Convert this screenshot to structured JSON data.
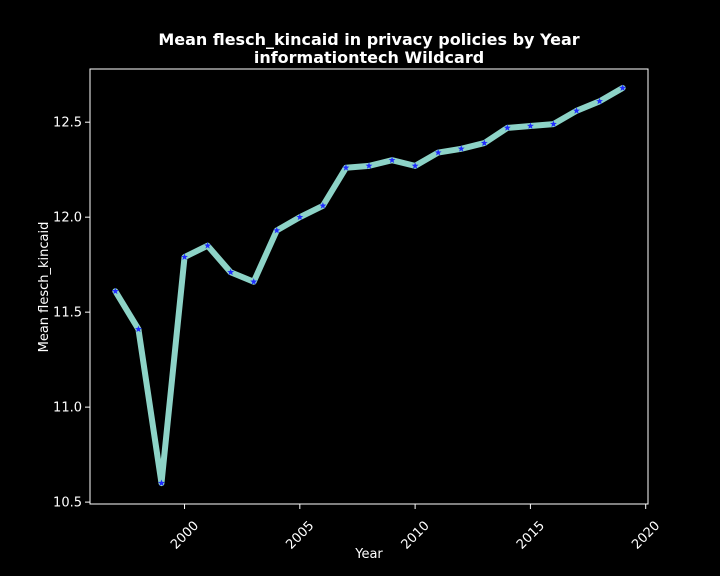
{
  "chart_data": {
    "type": "line",
    "title": "Mean flesch_kincaid in privacy policies by Year",
    "subtitle": "informationtech Wildcard",
    "xlabel": "Year",
    "ylabel": "Mean flesch_kincaid",
    "xlim": [
      1995.9,
      2020.1
    ],
    "ylim": [
      10.49,
      12.78
    ],
    "xticks": [
      2000,
      2005,
      2010,
      2015,
      2020
    ],
    "yticks": [
      10.5,
      11.0,
      11.5,
      12.0,
      12.5
    ],
    "grid": false,
    "line_color": "#8dd3c7",
    "marker_color": "#1f2bff",
    "background": "#000000",
    "x": [
      1997,
      1998,
      1999,
      2000,
      2001,
      2002,
      2003,
      2004,
      2005,
      2006,
      2007,
      2008,
      2009,
      2010,
      2011,
      2012,
      2013,
      2014,
      2015,
      2016,
      2017,
      2018,
      2019
    ],
    "values": [
      11.61,
      11.41,
      10.6,
      11.79,
      11.85,
      11.71,
      11.66,
      11.93,
      12.0,
      12.06,
      12.26,
      12.27,
      12.3,
      12.27,
      12.34,
      12.36,
      12.39,
      12.47,
      12.48,
      12.49,
      12.56,
      12.61,
      12.68
    ]
  }
}
